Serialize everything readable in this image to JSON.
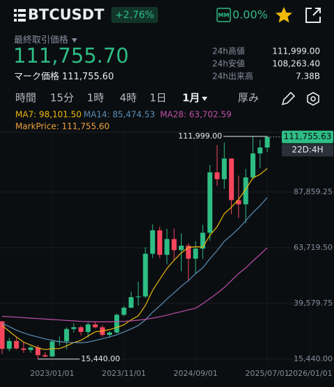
{
  "header": {
    "symbol": "BTCUSDT",
    "change": "+2.76%",
    "mm": "MM",
    "mm_value": "0.00%"
  },
  "price": {
    "label": "最終取引価格",
    "last": "111,755.70",
    "mark_label": "マーク価格",
    "mark": "111,755.60"
  },
  "stats": [
    {
      "label": "24h高値",
      "value": "111,999.00"
    },
    {
      "label": "24h安値",
      "value": "108,263.40"
    },
    {
      "label": "24h出来高",
      "value": "7.38B"
    }
  ],
  "tabs": [
    "時間",
    "15分",
    "1時",
    "4時",
    "1日",
    "1月",
    "厚み"
  ],
  "active_tab": 5,
  "chart_data": {
    "type": "candlestick",
    "up_color": "#2ebd85",
    "down_color": "#f6465d",
    "open": [
      31800,
      19900,
      23300,
      20050,
      19420,
      20490,
      17160,
      16540,
      23120,
      23150,
      28480,
      29250,
      27220,
      30470,
      29230,
      25940,
      26960,
      34650,
      37720,
      42280,
      42580,
      61130,
      71280,
      60640,
      67490,
      62680,
      64620,
      58970,
      63330,
      70220,
      96400,
      93430,
      102400,
      84350,
      82550,
      94200,
      104600,
      107150
    ],
    "high": [
      31950,
      24650,
      25200,
      22800,
      21100,
      21450,
      18400,
      23950,
      25250,
      29200,
      31000,
      29820,
      31450,
      31800,
      30200,
      27480,
      35200,
      38450,
      44700,
      48970,
      64000,
      73800,
      72800,
      71950,
      71980,
      70000,
      65600,
      66500,
      73600,
      99600,
      108300,
      109350,
      102500,
      95000,
      97900,
      111999,
      110500,
      111999
    ],
    "low": [
      17600,
      18800,
      19600,
      18150,
      18200,
      15440,
      16250,
      16500,
      21350,
      19550,
      26950,
      25800,
      24800,
      28850,
      25150,
      24900,
      26550,
      34100,
      37600,
      38550,
      41900,
      59300,
      59200,
      56550,
      58400,
      53500,
      49100,
      52550,
      58900,
      66800,
      90500,
      89250,
      78250,
      76600,
      74450,
      93300,
      98250,
      105100
    ],
    "close": [
      19900,
      23300,
      20050,
      19420,
      20490,
      17160,
      16540,
      23120,
      23150,
      28480,
      29250,
      27220,
      30470,
      29230,
      25940,
      26960,
      34650,
      37720,
      42280,
      42580,
      61130,
      71280,
      60640,
      67490,
      62680,
      64620,
      58970,
      63330,
      70220,
      96400,
      93430,
      102400,
      84350,
      82550,
      94200,
      104600,
      107150,
      111755.63
    ],
    "series": [
      {
        "name": "MA7",
        "color": "#f0b90b",
        "legend": "MA7: 98,101.50",
        "values": [
          30000,
          27500,
          25000,
          22800,
          21500,
          20300,
          19551,
          20011,
          19990,
          21194,
          22599,
          23560,
          25461,
          27274,
          27677,
          28221,
          29103,
          30313,
          32464,
          34194,
          38751,
          45229,
          50040,
          54731,
          58297,
          61489,
          63830,
          64144,
          63993,
          69101,
          72807,
          78481,
          81300,
          84669,
          89079,
          93990,
          95526,
          98101.5
        ]
      },
      {
        "name": "MA14",
        "color": "#5b8fb9",
        "legend": "MA14: 85,474.53",
        "values": [
          31000,
          29500,
          28000,
          26800,
          25800,
          25000,
          24200,
          23600,
          23000,
          22700,
          22600,
          22500,
          22800,
          23500,
          24300,
          25000,
          26000,
          27200,
          28500,
          30000,
          32500,
          35800,
          38500,
          41500,
          44200,
          47000,
          49500,
          52500,
          55000,
          59000,
          62500,
          66500,
          69200,
          72000,
          75500,
          79000,
          82000,
          85474.53
        ]
      },
      {
        "name": "MA28",
        "color": "#c04fa8",
        "legend": "MA28: 63,702.59",
        "values": [
          34000,
          33800,
          33600,
          33400,
          33200,
          33000,
          32800,
          32600,
          32400,
          32200,
          32000,
          31800,
          31700,
          31600,
          31600,
          31600,
          31700,
          31800,
          32000,
          32300,
          32700,
          33200,
          33800,
          34500,
          35300,
          36000,
          36800,
          37500,
          39500,
          41700,
          44000,
          46500,
          49500,
          52500,
          55000,
          58000,
          60800,
          63702.59
        ]
      }
    ],
    "mark_price": {
      "name": "MarkPrice",
      "color": "#f0a23b",
      "legend": "MarkPrice: 111,755.60"
    },
    "ylim": [
      12700,
      115300
    ],
    "yticks": [
      {
        "value": 87859.25,
        "label": "87,859.25"
      },
      {
        "value": 63719.5,
        "label": "63,719.50"
      },
      {
        "value": 39579.75,
        "label": "39,579.75"
      },
      {
        "value": 15440,
        "label": "15,440.00"
      }
    ],
    "xticks": [
      {
        "value": 7,
        "label": "2023/01/01"
      },
      {
        "value": 17,
        "label": "2023/11/01"
      },
      {
        "value": 27,
        "label": "2024/09/01"
      },
      {
        "value": 37,
        "label": "2025/07/01"
      },
      {
        "value": 43,
        "label": "2026/01/01"
      }
    ],
    "high_marker": {
      "value": 111999,
      "label": "111,999.00",
      "index": 37
    },
    "low_marker": {
      "value": 15440,
      "label": "15,440.00",
      "index": 5
    },
    "price_tag": {
      "value": 111755.63,
      "label": "111,755.63"
    },
    "countdown": "22D:4H",
    "grid": true
  }
}
